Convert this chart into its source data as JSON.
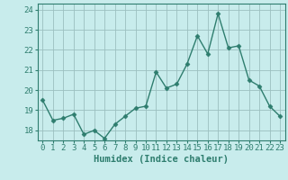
{
  "x": [
    0,
    1,
    2,
    3,
    4,
    5,
    6,
    7,
    8,
    9,
    10,
    11,
    12,
    13,
    14,
    15,
    16,
    17,
    18,
    19,
    20,
    21,
    22,
    23
  ],
  "y": [
    19.5,
    18.5,
    18.6,
    18.8,
    17.8,
    18.0,
    17.6,
    18.3,
    18.7,
    19.1,
    19.2,
    20.9,
    20.1,
    20.3,
    21.3,
    22.7,
    21.8,
    23.8,
    22.1,
    22.2,
    20.5,
    20.2,
    19.2,
    18.7
  ],
  "line_color": "#2e7d6e",
  "marker": "D",
  "markersize": 2.5,
  "linewidth": 1.0,
  "background_color": "#c8ecec",
  "grid_color": "#9bbfbf",
  "tick_color": "#2e7d6e",
  "xlabel": "Humidex (Indice chaleur)",
  "xlabel_fontsize": 7.5,
  "ylim": [
    17.5,
    24.3
  ],
  "xlim": [
    -0.5,
    23.5
  ],
  "yticks": [
    18,
    19,
    20,
    21,
    22,
    23,
    24
  ],
  "xticks": [
    0,
    1,
    2,
    3,
    4,
    5,
    6,
    7,
    8,
    9,
    10,
    11,
    12,
    13,
    14,
    15,
    16,
    17,
    18,
    19,
    20,
    21,
    22,
    23
  ],
  "tick_fontsize": 6.5
}
